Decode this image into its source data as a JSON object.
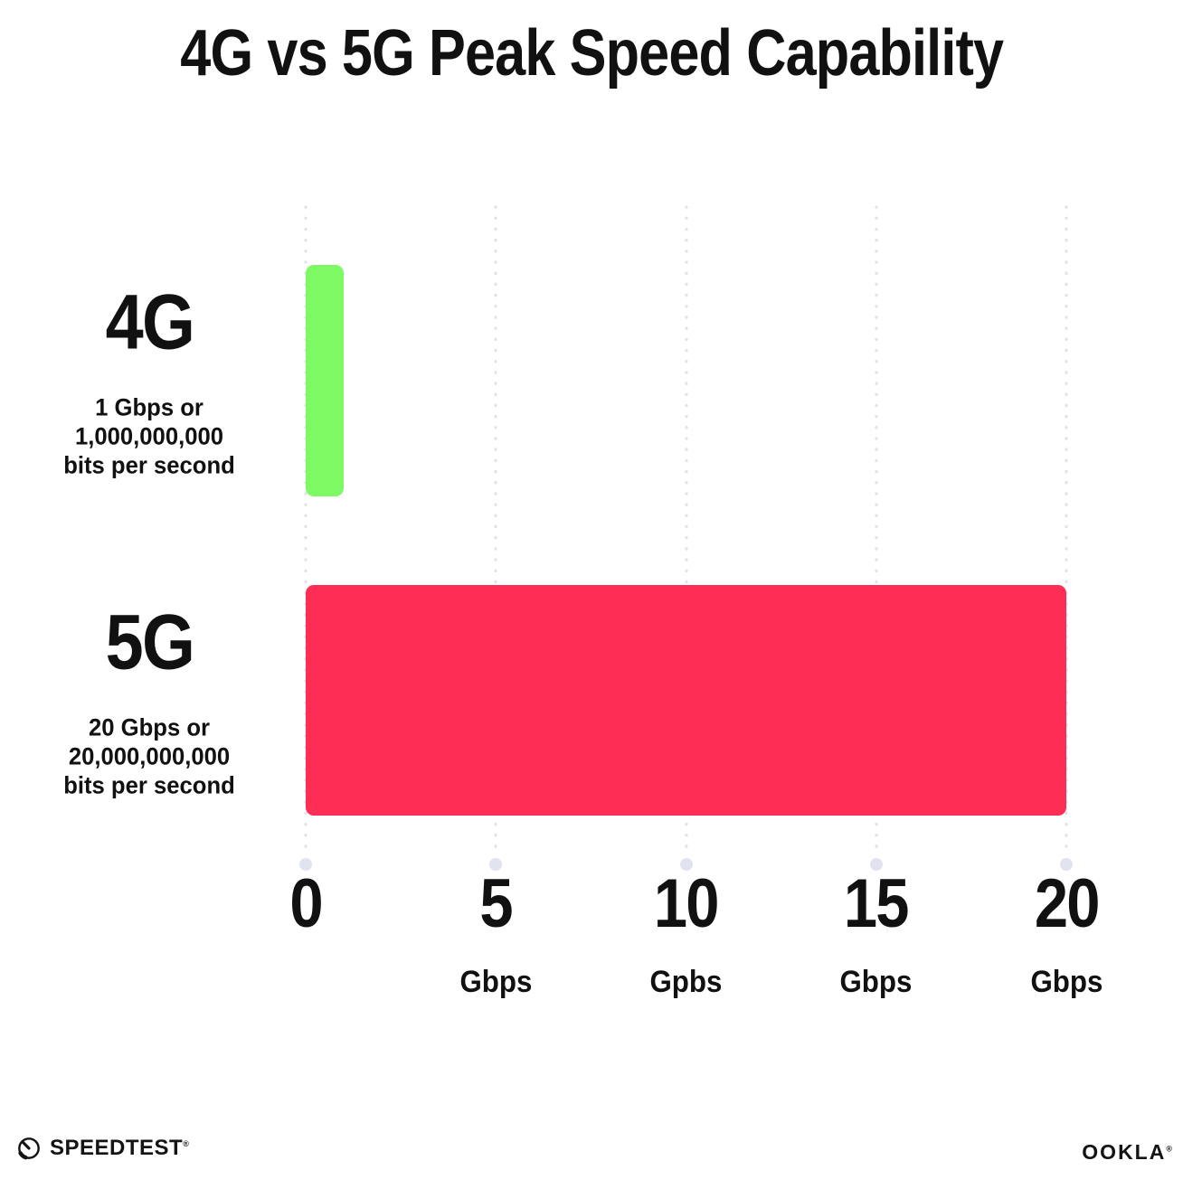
{
  "title": "4G vs 5G Peak Speed Capability",
  "chart_data": {
    "type": "bar",
    "orientation": "horizontal",
    "title": "4G vs 5G Peak Speed Capability",
    "categories": [
      "4G",
      "5G"
    ],
    "series": [
      {
        "name": "Peak speed (Gbps)",
        "values": [
          1,
          20
        ]
      }
    ],
    "category_sublabels": [
      [
        "1 Gbps or",
        "1,000,000,000",
        "bits per second"
      ],
      [
        "20 Gbps or",
        "20,000,000,000",
        "bits per second"
      ]
    ],
    "bar_colors": [
      "#7DF964",
      "#FD2D55"
    ],
    "xlim": [
      0,
      20
    ],
    "x_ticks": [
      {
        "value": 0,
        "label": "0",
        "unit": ""
      },
      {
        "value": 5,
        "label": "5",
        "unit": "Gbps"
      },
      {
        "value": 10,
        "label": "10",
        "unit": "Gpbs"
      },
      {
        "value": 15,
        "label": "15",
        "unit": "Gbps"
      },
      {
        "value": 20,
        "label": "20",
        "unit": "Gbps"
      }
    ],
    "grid": "dotted-vertical",
    "legend": "none"
  },
  "footer": {
    "speedtest_label": "SPEEDTEST",
    "speedtest_mark": "®",
    "ookla_label": "OOKLA",
    "ookla_mark": "®"
  },
  "colors": {
    "background": "#FFFFFF",
    "text": "#111111",
    "grid_dot": "#E2E2EE",
    "grid_end_dot": "#E1E4F0",
    "bar_4g": "#7DF964",
    "bar_5g": "#FD2D55"
  }
}
